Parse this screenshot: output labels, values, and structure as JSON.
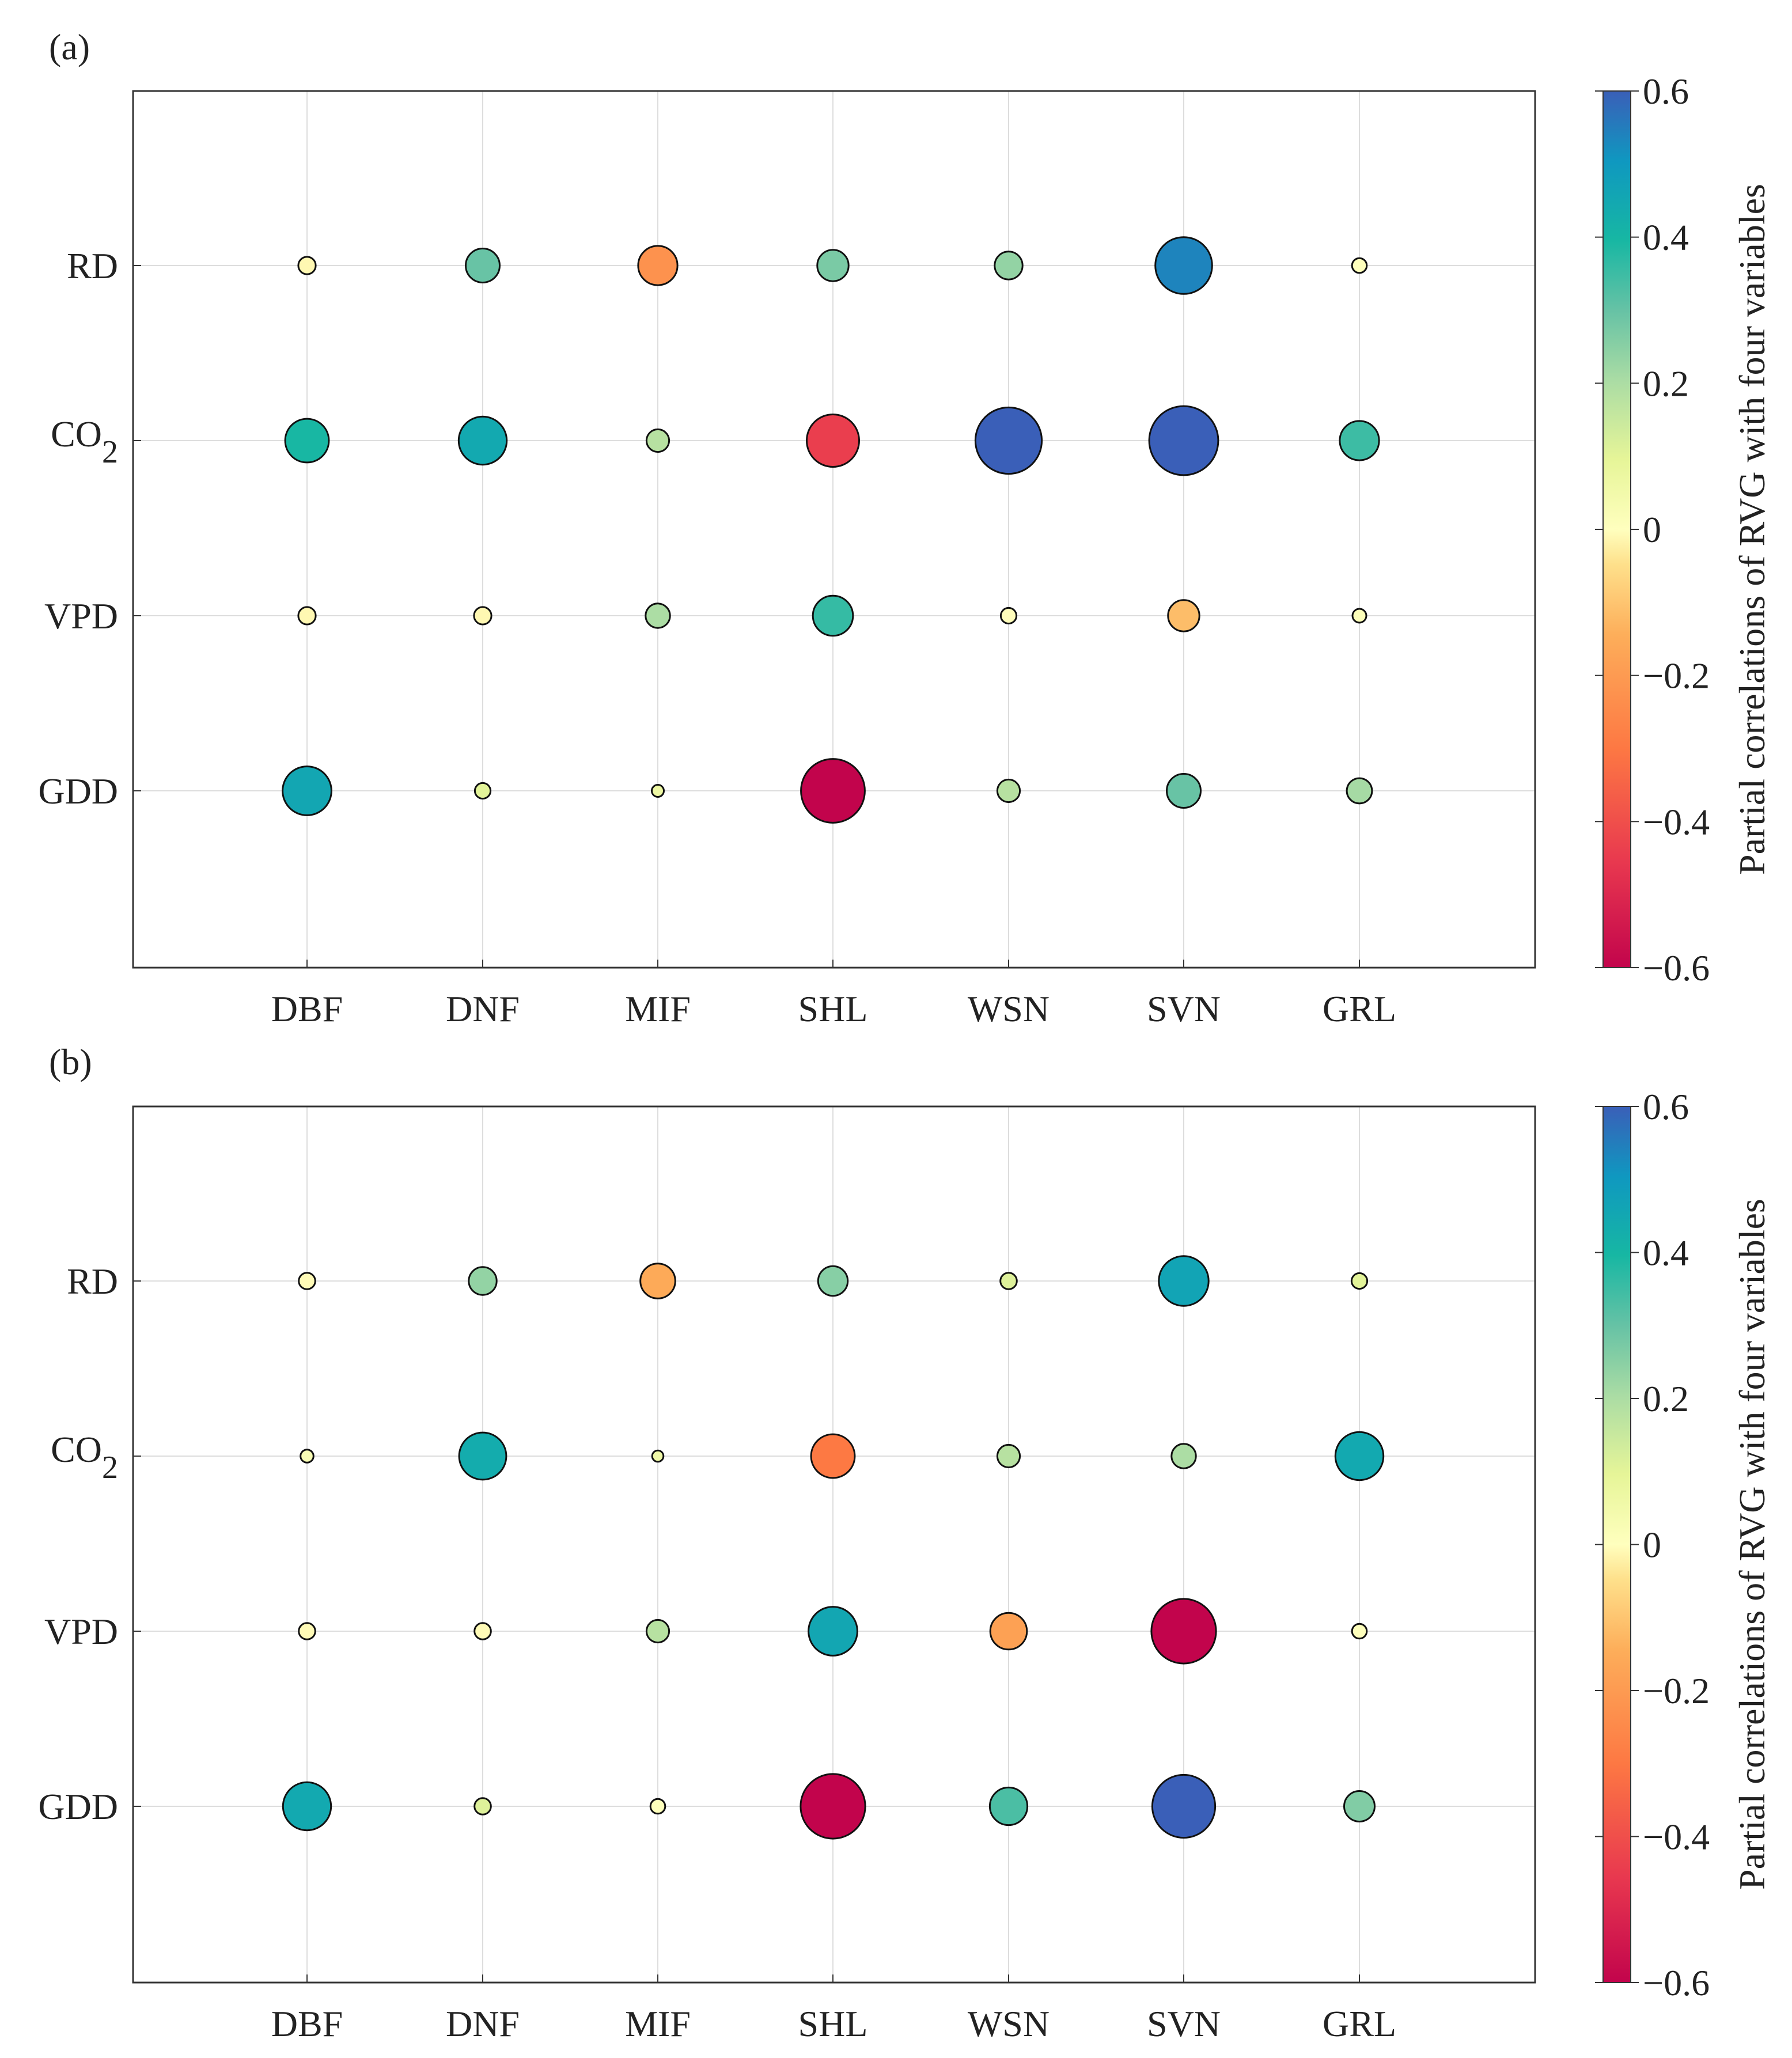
{
  "chart_data": [
    {
      "type": "bubble-matrix",
      "panel_label": "(a)",
      "categories": [
        "DBF",
        "DNF",
        "MIF",
        "SHL",
        "WSN",
        "SVN",
        "GRL"
      ],
      "rows": [
        {
          "name": "RD",
          "sub": "",
          "values": [
            -0.08,
            0.27,
            -0.33,
            0.24,
            0.2,
            0.53,
            -0.05
          ]
        },
        {
          "name": "CO",
          "sub": "2",
          "values": [
            0.38,
            0.43,
            0.14,
            -0.48,
            0.64,
            0.67,
            0.33
          ]
        },
        {
          "name": "VPD",
          "sub": "",
          "values": [
            -0.08,
            -0.08,
            0.16,
            0.34,
            -0.06,
            -0.24,
            -0.04
          ]
        },
        {
          "name": "GDD",
          "sub": "",
          "values": [
            0.44,
            0.06,
            0.02,
            -0.61,
            0.14,
            0.27,
            0.17
          ]
        }
      ],
      "colorbar": {
        "min": -0.6,
        "max": 0.6,
        "ticks": [
          "0.6",
          "0.4",
          "0.2",
          "0",
          "−0.2",
          "−0.4",
          "−0.6"
        ],
        "label": "Partial correlations of RVG with four variables"
      }
    },
    {
      "type": "bubble-matrix",
      "panel_label": "(b)",
      "categories": [
        "DBF",
        "DNF",
        "MIF",
        "SHL",
        "WSN",
        "SVN",
        "GRL"
      ],
      "rows": [
        {
          "name": "RD",
          "sub": "",
          "values": [
            -0.07,
            0.2,
            -0.28,
            0.22,
            0.07,
            0.45,
            0.06
          ]
        },
        {
          "name": "CO",
          "sub": "2",
          "values": [
            -0.03,
            0.42,
            0.01,
            -0.38,
            0.14,
            0.16,
            0.43
          ]
        },
        {
          "name": "VPD",
          "sub": "",
          "values": [
            -0.07,
            -0.07,
            0.14,
            0.44,
            -0.3,
            -0.62,
            -0.05
          ]
        },
        {
          "name": "GDD",
          "sub": "",
          "values": [
            0.43,
            0.07,
            -0.05,
            -0.62,
            0.31,
            0.6,
            0.23
          ]
        }
      ],
      "colorbar": {
        "min": -0.6,
        "max": 0.6,
        "ticks": [
          "0.6",
          "0.4",
          "0.2",
          "0",
          "−0.2",
          "−0.4",
          "−0.6"
        ],
        "label": "Partial correlations of RVG with four variables"
      }
    }
  ],
  "colors": {
    "scale": [
      "#c2044c",
      "#e8384f",
      "#fd7843",
      "#fdae5a",
      "#fee08b",
      "#ffffbe",
      "#e6f598",
      "#aadca4",
      "#66c2a5",
      "#17b7a3",
      "#0f98c0",
      "#3a5fb8"
    ],
    "grid": "#dddddd",
    "frame": "#333333"
  }
}
